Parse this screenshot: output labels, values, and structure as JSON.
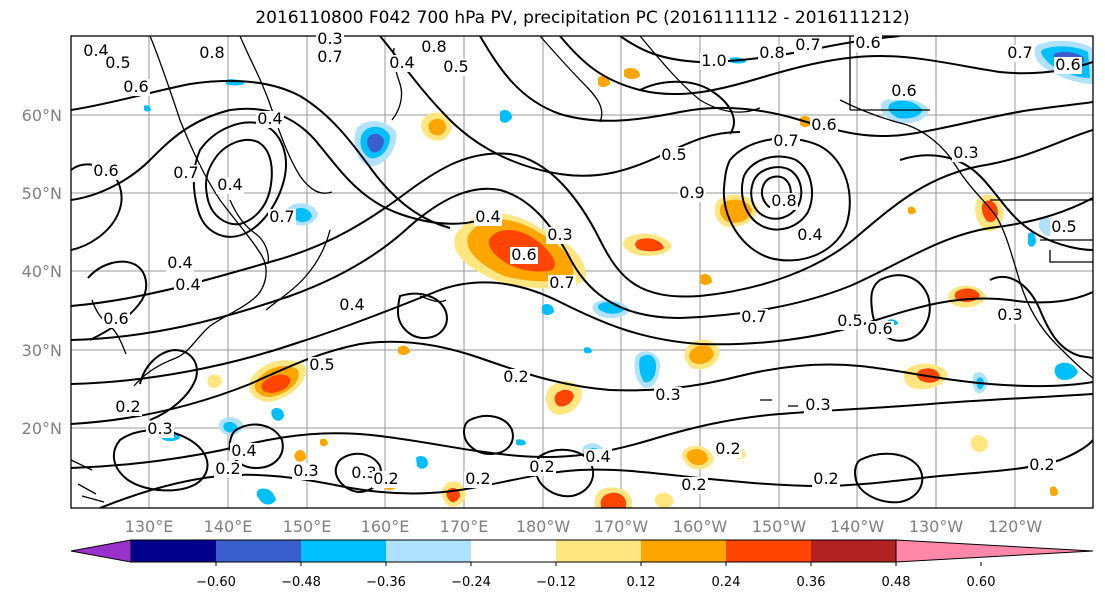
{
  "title": "2016110800 F042 700 hPa PV, precipitation PC (2016111112 - 2016111212)",
  "map": {
    "lat_labels": [
      "60°N",
      "50°N",
      "40°N",
      "30°N",
      "20°N"
    ],
    "lon_labels": [
      "130°E",
      "140°E",
      "150°E",
      "160°E",
      "170°E",
      "180°W",
      "170°W",
      "160°W",
      "150°W",
      "140°W",
      "130°W",
      "120°W"
    ],
    "contour_labels": [
      {
        "text": "0.4",
        "region": "northwest corner"
      },
      {
        "text": "0.5",
        "region": "northwest corner"
      },
      {
        "text": "0.6",
        "region": "northwest"
      },
      {
        "text": "0.8",
        "region": "north Japan Sea"
      },
      {
        "text": "0.3",
        "region": "north Sakhalin"
      },
      {
        "text": "0.7",
        "region": "north Sakhalin"
      },
      {
        "text": "0.8",
        "region": "Okhotsk"
      },
      {
        "text": "0.5",
        "region": "Okhotsk"
      },
      {
        "text": "0.4",
        "region": "Bering"
      },
      {
        "text": "1.0",
        "region": "Bering"
      },
      {
        "text": "0.8",
        "region": "Alaska"
      },
      {
        "text": "0.7",
        "region": "Alaska"
      },
      {
        "text": "0.6",
        "region": "Alaska"
      },
      {
        "text": "0.7",
        "region": "Yukon"
      },
      {
        "text": "0.6",
        "region": "northeast corner"
      },
      {
        "text": "0.6",
        "region": "Gulf of Alaska"
      },
      {
        "text": "0.6",
        "region": "north Pacific"
      },
      {
        "text": "0.7",
        "region": "north Pacific"
      },
      {
        "text": "0.5",
        "region": "north Pacific"
      },
      {
        "text": "0.9",
        "region": "north Pacific"
      },
      {
        "text": "0.8",
        "region": "north Pacific"
      },
      {
        "text": "0.4",
        "region": "north Pacific"
      },
      {
        "text": "0.3",
        "region": "Canada coast"
      },
      {
        "text": "0.4",
        "region": "Kamchatka"
      },
      {
        "text": "0.7",
        "region": "Manchuria"
      },
      {
        "text": "0.4",
        "region": "Manchuria"
      },
      {
        "text": "0.6",
        "region": "China"
      },
      {
        "text": "0.7",
        "region": "Japan"
      },
      {
        "text": "0.4",
        "region": "central Pacific"
      },
      {
        "text": "0.3",
        "region": "central Pacific"
      },
      {
        "text": "0.6",
        "region": "central Pacific"
      },
      {
        "text": "0.7",
        "region": "central Pacific"
      },
      {
        "text": "0.4",
        "region": "east China"
      },
      {
        "text": "0.6",
        "region": "east China"
      },
      {
        "text": "0.4",
        "region": "west Pacific"
      },
      {
        "text": "0.5",
        "region": "west Pacific"
      },
      {
        "text": "0.7",
        "region": "east Pacific"
      },
      {
        "text": "0.5",
        "region": "east Pacific"
      },
      {
        "text": "0.6",
        "region": "east Pacific"
      },
      {
        "text": "0.3",
        "region": "California"
      },
      {
        "text": "0.5",
        "region": "US west"
      },
      {
        "text": "0.2",
        "region": "subtropics"
      },
      {
        "text": "0.3",
        "region": "subtropics"
      },
      {
        "text": "0.3",
        "region": "subtropics east"
      },
      {
        "text": "0.2",
        "region": "South China Sea"
      },
      {
        "text": "0.3",
        "region": "Philippines"
      },
      {
        "text": "0.4",
        "region": "Philippine Sea"
      },
      {
        "text": "0.2",
        "region": "Philippine Sea"
      },
      {
        "text": "0.3",
        "region": "tropics"
      },
      {
        "text": "0.3",
        "region": "tropics"
      },
      {
        "text": "0.2",
        "region": "tropics"
      },
      {
        "text": "0.2",
        "region": "tropics"
      },
      {
        "text": "0.2",
        "region": "tropics"
      },
      {
        "text": "0.4",
        "region": "tropics"
      },
      {
        "text": "0.2",
        "region": "tropics east"
      },
      {
        "text": "0.2",
        "region": "tropics east"
      },
      {
        "text": "0.2",
        "region": "tropics east"
      },
      {
        "text": "0.2",
        "region": "southeast corner"
      },
      {
        "text": "0.4",
        "region": "South China Sea"
      }
    ]
  },
  "colorbar": {
    "ticks": [
      "−0.60",
      "−0.48",
      "−0.36",
      "−0.24",
      "−0.12",
      "0.12",
      "0.24",
      "0.36",
      "0.48",
      "0.60"
    ],
    "colors": [
      "#9932cc",
      "#00008b",
      "#3a5fcd",
      "#00bfff",
      "#b0e2ff",
      "#ffffff",
      "#ffe680",
      "#ffa500",
      "#ff4500",
      "#b22222",
      "#ff88aa"
    ]
  },
  "shading_colors": {
    "pos1": "#ffe680",
    "pos2": "#ffa500",
    "pos3": "#ff4500",
    "neg1": "#b0e2ff",
    "neg2": "#00bfff",
    "neg3": "#3a5fcd"
  }
}
